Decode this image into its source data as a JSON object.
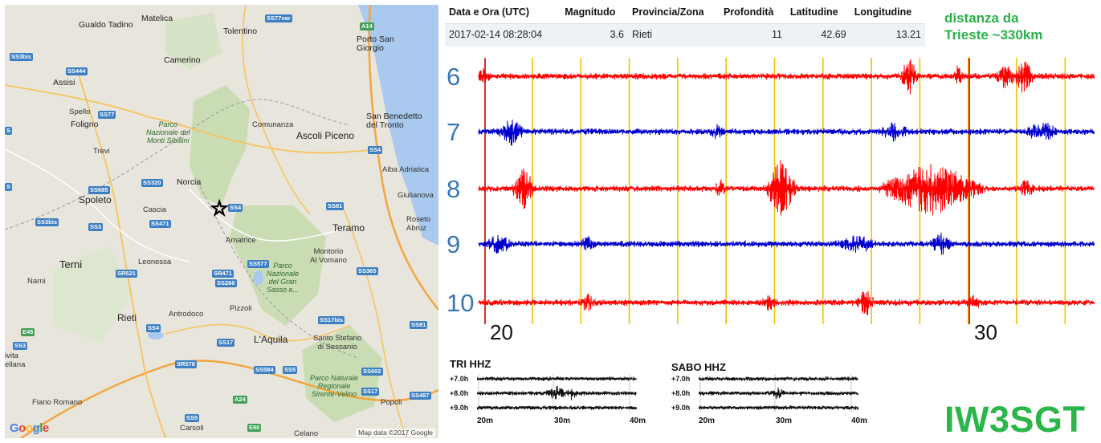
{
  "map": {
    "google_logo_letters": [
      {
        "ch": "G",
        "color": "#4285f4"
      },
      {
        "ch": "o",
        "color": "#ea4335"
      },
      {
        "ch": "o",
        "color": "#fbbc05"
      },
      {
        "ch": "g",
        "color": "#4285f4"
      },
      {
        "ch": "l",
        "color": "#34a853"
      },
      {
        "ch": "e",
        "color": "#ea4335"
      }
    ],
    "credit": "Map data ©2017 Google",
    "places": {
      "matelica": "Matelica",
      "gualdo_tadino": "Gualdo Tadino",
      "tolentino": "Tolentino",
      "porto_san_giorgio": "Porto San\nGiorgio",
      "assisi": "Assisi",
      "camerino": "Camerino",
      "spello": "Spello",
      "foligno": "Foligno",
      "comunanza": "Comunanza",
      "san_benedetto": "San Benedetto\ndel Tronto",
      "trevi": "Trevi",
      "ascoli_piceno": "Ascoli Piceno",
      "alba_adriatica": "Alba Adriatica",
      "norcia": "Norcia",
      "spoleto": "Spoleto",
      "cascia": "Cascia",
      "giulianova": "Giulianova",
      "roseto": "Roseto\nAbruz",
      "amatrice": "Amatrice",
      "teramo": "Teramo",
      "terni": "Terni",
      "leonessa": "Leonessa",
      "montorio": "Montorio\nAl Vomano",
      "narni": "Narni",
      "antrodoco": "Antrodoco",
      "pizzoli": "Pizzoli",
      "rieti": "Rieti",
      "laquila": "L'Aquila",
      "santo_stefano": "Santo Stefano\ndi Sessanio",
      "civita": "ivita\nellana",
      "fiano_romano": "Fiano Romano",
      "popoli": "Popoli",
      "carsoli": "Carsoli",
      "celano": "Celano"
    },
    "parks": {
      "sibillini": "Parco\nNazionale dei\nMonti Sibillini",
      "gran_sasso": "Parco\nNazionale\ndel Gran\nSasso e...",
      "sirente": "Parco Naturale\nRegionale\nSirente-Velino"
    },
    "roads": {
      "ss77var": "SS77var",
      "a14": "A14",
      "ss3bis_a": "SS3bis",
      "ss444": "SS444",
      "ss77": "SS77",
      "s_left": "S",
      "ss4_a": "SS4",
      "ss320": "SS320",
      "ss685": "SS685",
      "ss471": "SS471",
      "s_box": "S",
      "ss4_b": "SS4",
      "ss81_a": "SS81",
      "ss3bis_b": "SS3bis",
      "ss3_a": "SS3",
      "ss577": "SS577",
      "sr471": "SR471",
      "sr521": "SR521",
      "ss260": "SS260",
      "ss365": "SS365",
      "ss17bis": "SS17bis",
      "ss4_c": "SS4",
      "ss81_b": "SS81",
      "e45": "E45",
      "ss3_b": "SS3",
      "ss17": "SS17",
      "sr578": "SR578",
      "ss584": "SS584",
      "ss5_a": "SS5",
      "ss602": "SS602",
      "ss17_b": "SS17",
      "a24": "A24",
      "ss5_b": "SS5",
      "e80": "E80",
      "ss487": "SS487"
    }
  },
  "quake_table": {
    "headers": {
      "datetime": "Data e Ora (UTC)",
      "magnitude": "Magnitudo",
      "zone": "Provincia/Zona",
      "depth": "Profondità",
      "latitude": "Latitudine",
      "longitude": "Longitudine"
    },
    "row": {
      "datetime": "2017-02-14 08:28:04",
      "magnitude": "3.6",
      "zone": "Rieti",
      "depth": "11",
      "latitude": "42.69",
      "longitude": "13.21"
    }
  },
  "distance_note": {
    "line1": "distanza da",
    "line2": "Trieste ~330km"
  },
  "seismogram": {
    "row_labels": [
      "6",
      "7",
      "8",
      "9",
      "10"
    ],
    "row_colors": [
      "#ff0000",
      "#0000cc",
      "#ff0000",
      "#0000cc",
      "#ff0000"
    ],
    "minute_labels": [
      {
        "label": "20",
        "minute": 20
      },
      {
        "label": "30",
        "minute": 30
      }
    ],
    "gridline_color": "#f2c200",
    "marker_color": "#cc0000"
  },
  "mini_plots": [
    {
      "title": "TRI HHZ",
      "rows": [
        "+7.0h",
        "+8.0h",
        "+9.0h"
      ],
      "x_labels": [
        "20m",
        "30m",
        "40m"
      ]
    },
    {
      "title": "SABO HHZ",
      "rows": [
        "+7.0h",
        "+8.0h",
        "+9.0h"
      ],
      "x_labels": [
        "20m",
        "30m",
        "40m"
      ]
    }
  ],
  "callsign": "IW3SGT"
}
